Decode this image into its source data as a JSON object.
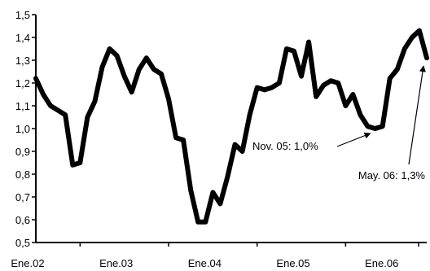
{
  "chart_data": {
    "type": "line",
    "title": "",
    "xlabel": "",
    "ylabel": "",
    "ylim": [
      0.5,
      1.5
    ],
    "y_ticks": [
      "0,5",
      "0,6",
      "0,7",
      "0,8",
      "0,9",
      "1,0",
      "1,1",
      "1,2",
      "1,3",
      "1,4",
      "1,5"
    ],
    "x_ticks": [
      "Ene.02",
      "Ene.03",
      "Ene.04",
      "Ene.05",
      "Ene.06"
    ],
    "grid": false,
    "legend": "none",
    "line_color": "#000000",
    "series": [
      {
        "values": [
          1.22,
          1.15,
          1.1,
          1.08,
          1.06,
          0.84,
          0.85,
          1.05,
          1.12,
          1.27,
          1.35,
          1.32,
          1.23,
          1.16,
          1.26,
          1.31,
          1.26,
          1.24,
          1.13,
          0.96,
          0.95,
          0.73,
          0.59,
          0.59,
          0.72,
          0.67,
          0.79,
          0.93,
          0.9,
          1.06,
          1.18,
          1.17,
          1.18,
          1.2,
          1.35,
          1.34,
          1.23,
          1.38,
          1.14,
          1.19,
          1.21,
          1.2,
          1.1,
          1.15,
          1.06,
          1.01,
          1.0,
          1.01,
          1.22,
          1.26,
          1.35,
          1.4,
          1.43,
          1.31
        ]
      }
    ],
    "annotations": [
      {
        "text": "Nov. 05: 1,0%",
        "x_index": 46,
        "y": 1.0
      },
      {
        "text": "May. 06: 1,3%",
        "x_index": 53,
        "y": 1.31
      }
    ]
  }
}
